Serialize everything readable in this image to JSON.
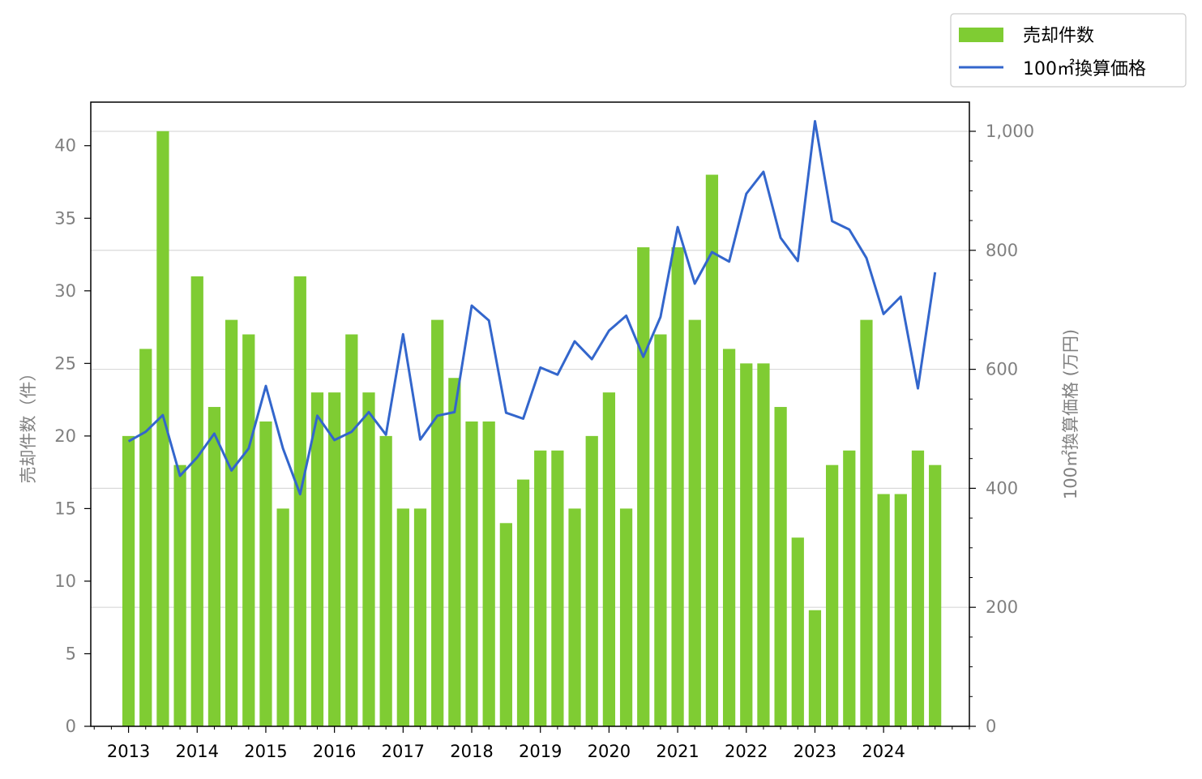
{
  "chart_data": {
    "type": "bar",
    "x_axis": {
      "tick_labels": [
        "2013",
        "2014",
        "2015",
        "2016",
        "2017",
        "2018",
        "2019",
        "2020",
        "2021",
        "2022",
        "2023",
        "2024"
      ],
      "tick_positions": [
        2013,
        2014,
        2015,
        2016,
        2017,
        2018,
        2019,
        2020,
        2021,
        2022,
        2023,
        2024
      ],
      "xlim": [
        2012.45,
        2025.25
      ],
      "minor_step": 0.25
    },
    "y_left": {
      "label": "売却件数（件）",
      "ylim": [
        0,
        43
      ],
      "ticks": [
        0,
        5,
        10,
        15,
        20,
        25,
        30,
        35,
        40
      ],
      "tick_labels": [
        "0",
        "5",
        "10",
        "15",
        "20",
        "25",
        "30",
        "35",
        "40"
      ],
      "label_color": "#808080"
    },
    "y_right": {
      "label": "100㎡換算価格 (万円)",
      "ylim": [
        0,
        1049
      ],
      "ticks": [
        0,
        200,
        400,
        600,
        800,
        1000
      ],
      "tick_labels": [
        "0",
        "200",
        "400",
        "600",
        "800",
        "1,000"
      ],
      "minor_step": 50,
      "label_color": "#808080"
    },
    "grid": "horizontal (right axis major ticks)",
    "legend_placement": "top-right",
    "x": [
      2013.0,
      2013.25,
      2013.5,
      2013.75,
      2014.0,
      2014.25,
      2014.5,
      2014.75,
      2015.0,
      2015.25,
      2015.5,
      2015.75,
      2016.0,
      2016.25,
      2016.5,
      2016.75,
      2017.0,
      2017.25,
      2017.5,
      2017.75,
      2018.0,
      2018.25,
      2018.5,
      2018.75,
      2019.0,
      2019.25,
      2019.5,
      2019.75,
      2020.0,
      2020.25,
      2020.5,
      2020.75,
      2021.0,
      2021.25,
      2021.5,
      2021.75,
      2022.0,
      2022.25,
      2022.5,
      2022.75,
      2023.0,
      2023.25,
      2023.5,
      2023.75,
      2024.0,
      2024.25,
      2024.5,
      2024.75
    ],
    "series": [
      {
        "name": "売却件数",
        "type": "bar",
        "axis": "left",
        "color": "#7fcc33",
        "values": [
          20,
          26,
          41,
          18,
          31,
          22,
          28,
          27,
          21,
          15,
          31,
          23,
          23,
          27,
          23,
          20,
          15,
          15,
          28,
          24,
          21,
          21,
          14,
          17,
          19,
          19,
          15,
          20,
          23,
          15,
          33,
          27,
          33,
          28,
          38,
          26,
          25,
          25,
          22,
          13,
          8,
          18,
          19,
          28,
          16,
          16,
          19,
          18
        ]
      },
      {
        "name": "100㎡換算価格",
        "type": "line",
        "axis": "right",
        "color": "#3366cc",
        "values": [
          479,
          495,
          523,
          421,
          452,
          492,
          430,
          467,
          572,
          467,
          390,
          522,
          481,
          495,
          528,
          490,
          659,
          482,
          522,
          528,
          707,
          682,
          527,
          517,
          603,
          591,
          647,
          617,
          665,
          690,
          621,
          688,
          839,
          744,
          797,
          781,
          895,
          932,
          821,
          782,
          1017,
          849,
          835,
          787,
          693,
          722,
          568,
          763
        ]
      }
    ]
  }
}
